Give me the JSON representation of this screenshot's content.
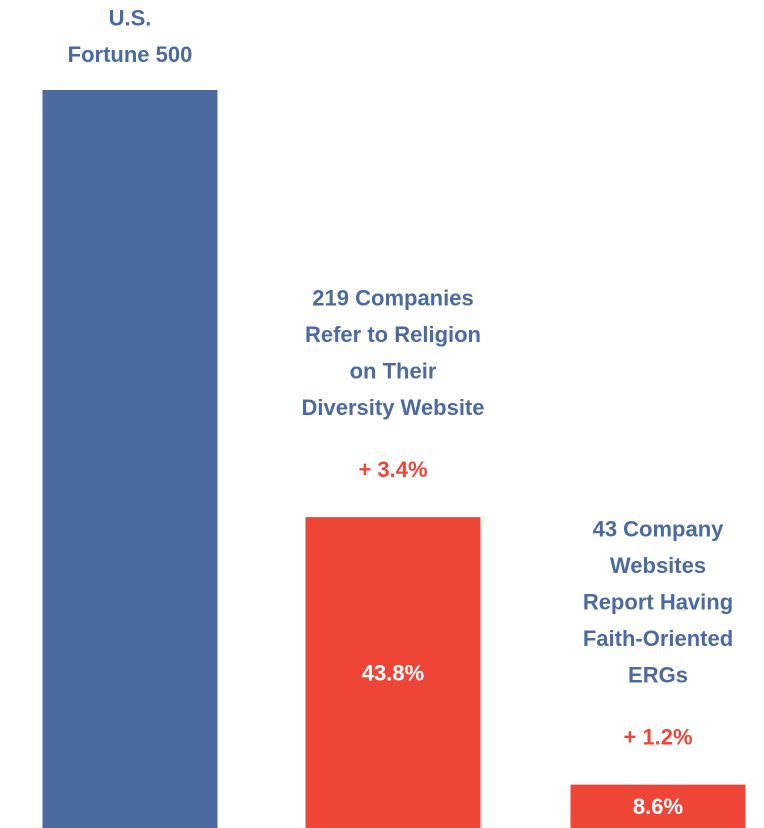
{
  "chart_data": {
    "type": "bar",
    "categories": [
      [
        "U.S.",
        "Fortune 500"
      ],
      [
        "219 Companies",
        "Refer to Religion",
        "on Their",
        "Diversity Website"
      ],
      [
        "43 Company",
        "Websites",
        "Report Having",
        "Faith-Oriented",
        "ERGs"
      ]
    ],
    "values": [
      100,
      43.8,
      8.6
    ],
    "value_labels": [
      null,
      "43.8%",
      "8.6%"
    ],
    "changes": [
      null,
      "+ 3.4%",
      "+ 1.2%"
    ],
    "colors": [
      "#4a6aa0",
      "#ef4537",
      "#ef4537"
    ],
    "label_color": "#4a6aa0",
    "change_color": "#ef4537",
    "ylim": [
      0,
      100
    ]
  }
}
